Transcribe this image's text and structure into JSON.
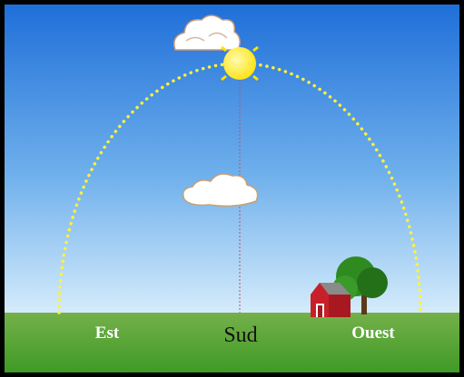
{
  "labels": {
    "east": "Est",
    "south": "Sud",
    "west": "Ouest"
  }
}
